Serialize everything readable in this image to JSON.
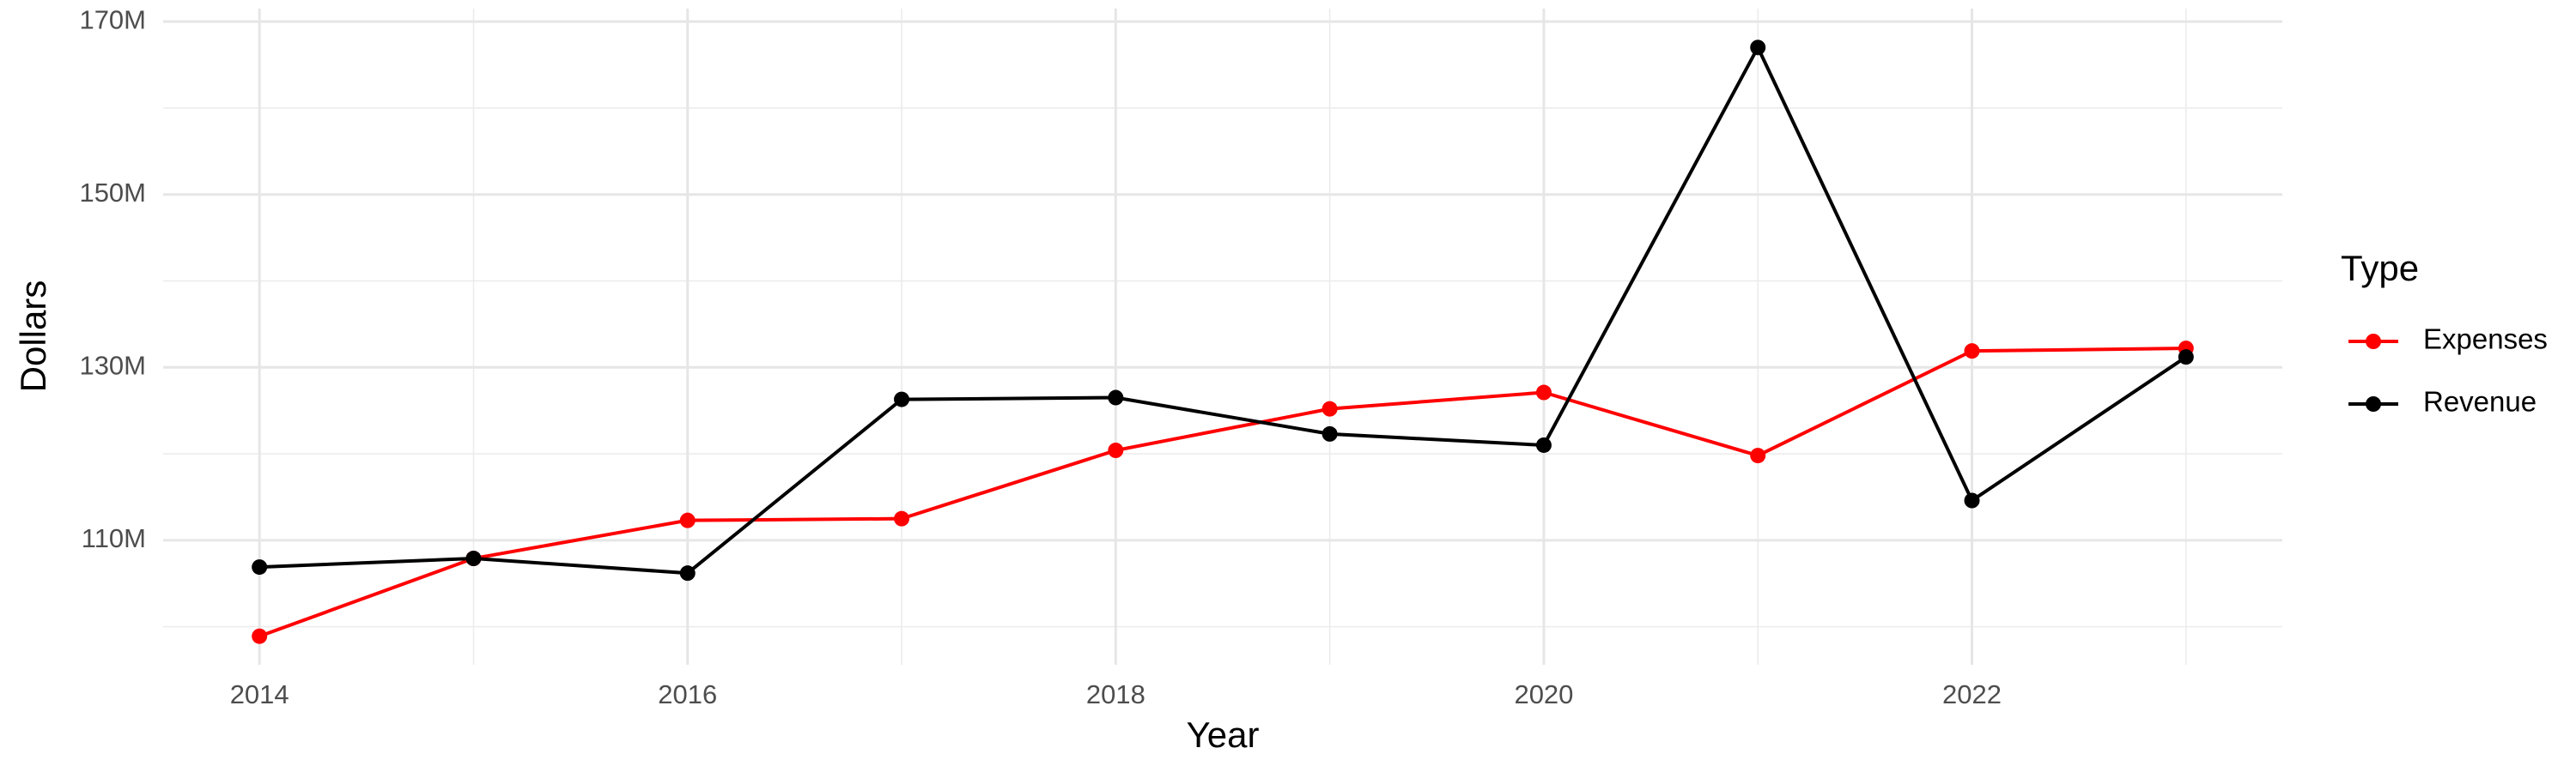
{
  "chart_data": {
    "type": "line",
    "x_label": "Year",
    "y_label": "Dollars",
    "legend_title": "Type",
    "legend": "right",
    "grid": true,
    "x": [
      2014,
      2015,
      2016,
      2017,
      2018,
      2019,
      2020,
      2021,
      2022,
      2023
    ],
    "series": [
      {
        "name": "Expenses",
        "color": "#ff0000",
        "values": [
          98900000,
          107900000,
          112300000,
          112500000,
          120400000,
          125200000,
          127100000,
          119800000,
          131900000,
          132200000
        ]
      },
      {
        "name": "Revenue",
        "color": "#000000",
        "values": [
          106900000,
          107900000,
          106200000,
          126300000,
          126500000,
          122300000,
          121000000,
          167000000,
          114600000,
          131200000
        ]
      }
    ],
    "xlim": [
      2013.55,
      2023.45
    ],
    "ylim": [
      95600000,
      171500000
    ],
    "xticks": [
      2014,
      2016,
      2018,
      2020,
      2022
    ],
    "yticks": [
      {
        "value": 110000000,
        "label": "110M"
      },
      {
        "value": 130000000,
        "label": "130M"
      },
      {
        "value": 150000000,
        "label": "150M"
      },
      {
        "value": 170000000,
        "label": "170M"
      }
    ]
  }
}
